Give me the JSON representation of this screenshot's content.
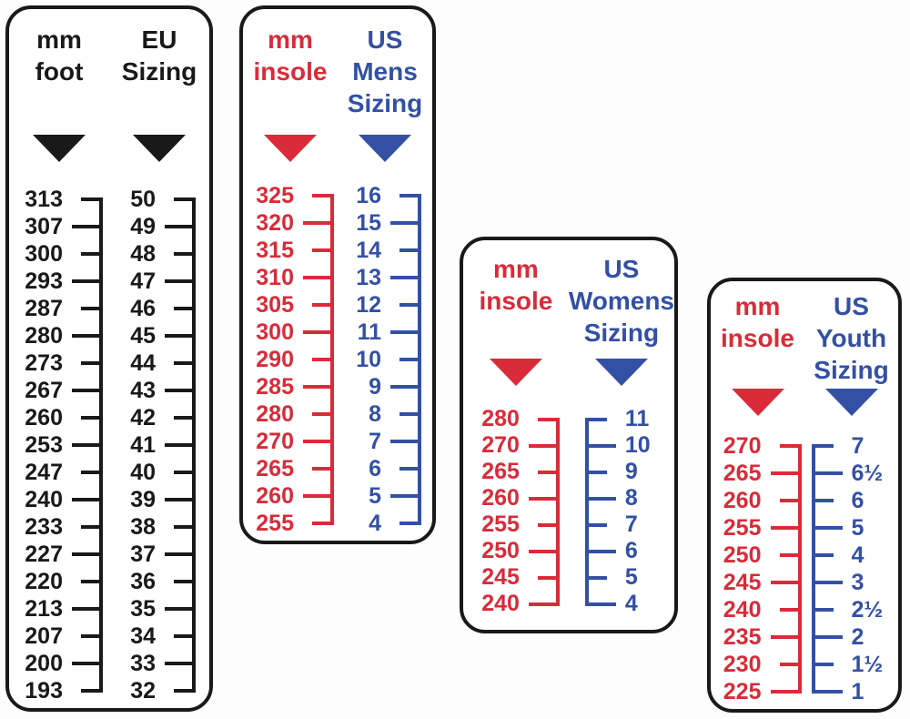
{
  "colors": {
    "black": "#191919",
    "red": "#d92b39",
    "blue": "#3350a5"
  },
  "chart_data": [
    {
      "type": "table",
      "title": "mm foot to EU Sizing conversion scale",
      "row_pairing": "values align by index across columns",
      "columns": [
        {
          "header_lines": [
            "mm",
            "foot"
          ],
          "color": "black",
          "marker_icon": "down-triangle",
          "spine_side": "right",
          "values": [
            "313",
            "307",
            "300",
            "293",
            "287",
            "280",
            "273",
            "267",
            "260",
            "253",
            "247",
            "240",
            "233",
            "227",
            "220",
            "213",
            "207",
            "200",
            "193"
          ]
        },
        {
          "header_lines": [
            "EU",
            "Sizing"
          ],
          "color": "black",
          "marker_icon": "down-triangle",
          "spine_side": "right",
          "values": [
            "50",
            "49",
            "48",
            "47",
            "46",
            "45",
            "44",
            "43",
            "42",
            "41",
            "40",
            "39",
            "38",
            "37",
            "36",
            "35",
            "34",
            "33",
            "32"
          ]
        }
      ]
    },
    {
      "type": "table",
      "title": "mm insole to US Mens Sizing conversion scale",
      "row_pairing": "values align by index across columns",
      "columns": [
        {
          "header_lines": [
            "mm",
            "insole"
          ],
          "color": "red",
          "marker_icon": "down-triangle",
          "spine_side": "right",
          "values": [
            "325",
            "320",
            "315",
            "310",
            "305",
            "300",
            "290",
            "285",
            "280",
            "270",
            "265",
            "260",
            "255"
          ]
        },
        {
          "header_lines": [
            "US",
            "Mens",
            "Sizing"
          ],
          "color": "blue",
          "marker_icon": "down-triangle",
          "spine_side": "right",
          "values": [
            "16",
            "15",
            "14",
            "13",
            "12",
            "11",
            "10",
            "9",
            "8",
            "7",
            "6",
            "5",
            "4"
          ]
        }
      ]
    },
    {
      "type": "table",
      "title": "mm insole to US Womens Sizing conversion scale",
      "row_pairing": "values align by index across columns",
      "columns": [
        {
          "header_lines": [
            "mm",
            "insole"
          ],
          "color": "red",
          "marker_icon": "down-triangle",
          "spine_side": "right",
          "values": [
            "280",
            "270",
            "265",
            "260",
            "255",
            "250",
            "245",
            "240"
          ]
        },
        {
          "header_lines": [
            "US",
            "Womens",
            "Sizing"
          ],
          "color": "blue",
          "marker_icon": "down-triangle",
          "spine_side": "left",
          "values": [
            "11",
            "10",
            "9",
            "8",
            "7",
            "6",
            "5",
            "4"
          ]
        }
      ]
    },
    {
      "type": "table",
      "title": "mm insole to US Youth Sizing conversion scale",
      "row_pairing": "values align by index across columns",
      "columns": [
        {
          "header_lines": [
            "mm",
            "insole"
          ],
          "color": "red",
          "marker_icon": "down-triangle",
          "spine_side": "right",
          "values": [
            "270",
            "265",
            "260",
            "255",
            "250",
            "245",
            "240",
            "235",
            "230",
            "225"
          ]
        },
        {
          "header_lines": [
            "US",
            "Youth",
            "Sizing"
          ],
          "color": "blue",
          "marker_icon": "down-triangle",
          "spine_side": "left",
          "values": [
            "7",
            "6½",
            "6",
            "5",
            "4",
            "3",
            "2½",
            "2",
            "1½",
            "1"
          ]
        }
      ]
    }
  ]
}
